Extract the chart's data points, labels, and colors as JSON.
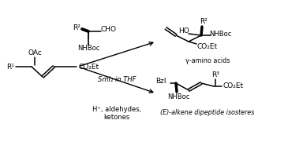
{
  "bg_color": "#ffffff",
  "text_color": "#000000",
  "line_color": "#000000",
  "figsize": [
    3.65,
    1.81
  ],
  "dpi": 100,
  "reagents_top_line1": "H⁺, aldehydes,",
  "reagents_top_line2": "ketones",
  "reagents_mid": "SmI₂ in THF",
  "product_top_label": "(E)-alkene dipeptide isosteres",
  "product_bot_label": "γ-amino acids",
  "substrate_R1": "R¹",
  "substrate_OAc": "OAc",
  "substrate_CO2Et": "CO₂Et",
  "aldehyde_R2": "R²",
  "aldehyde_CHO": "CHO",
  "aldehyde_NHBoc": "NHBoc",
  "product_top_Bzl": "Bzl",
  "product_top_R3": "R³",
  "product_top_CO2Et": "CO₂Et",
  "product_top_NHBoc": "NHBoc",
  "product_bot_HO": "HO",
  "product_bot_R2": "R²",
  "product_bot_NHBoc": "NHBoc",
  "product_bot_CO2Et": "CO₂Et"
}
